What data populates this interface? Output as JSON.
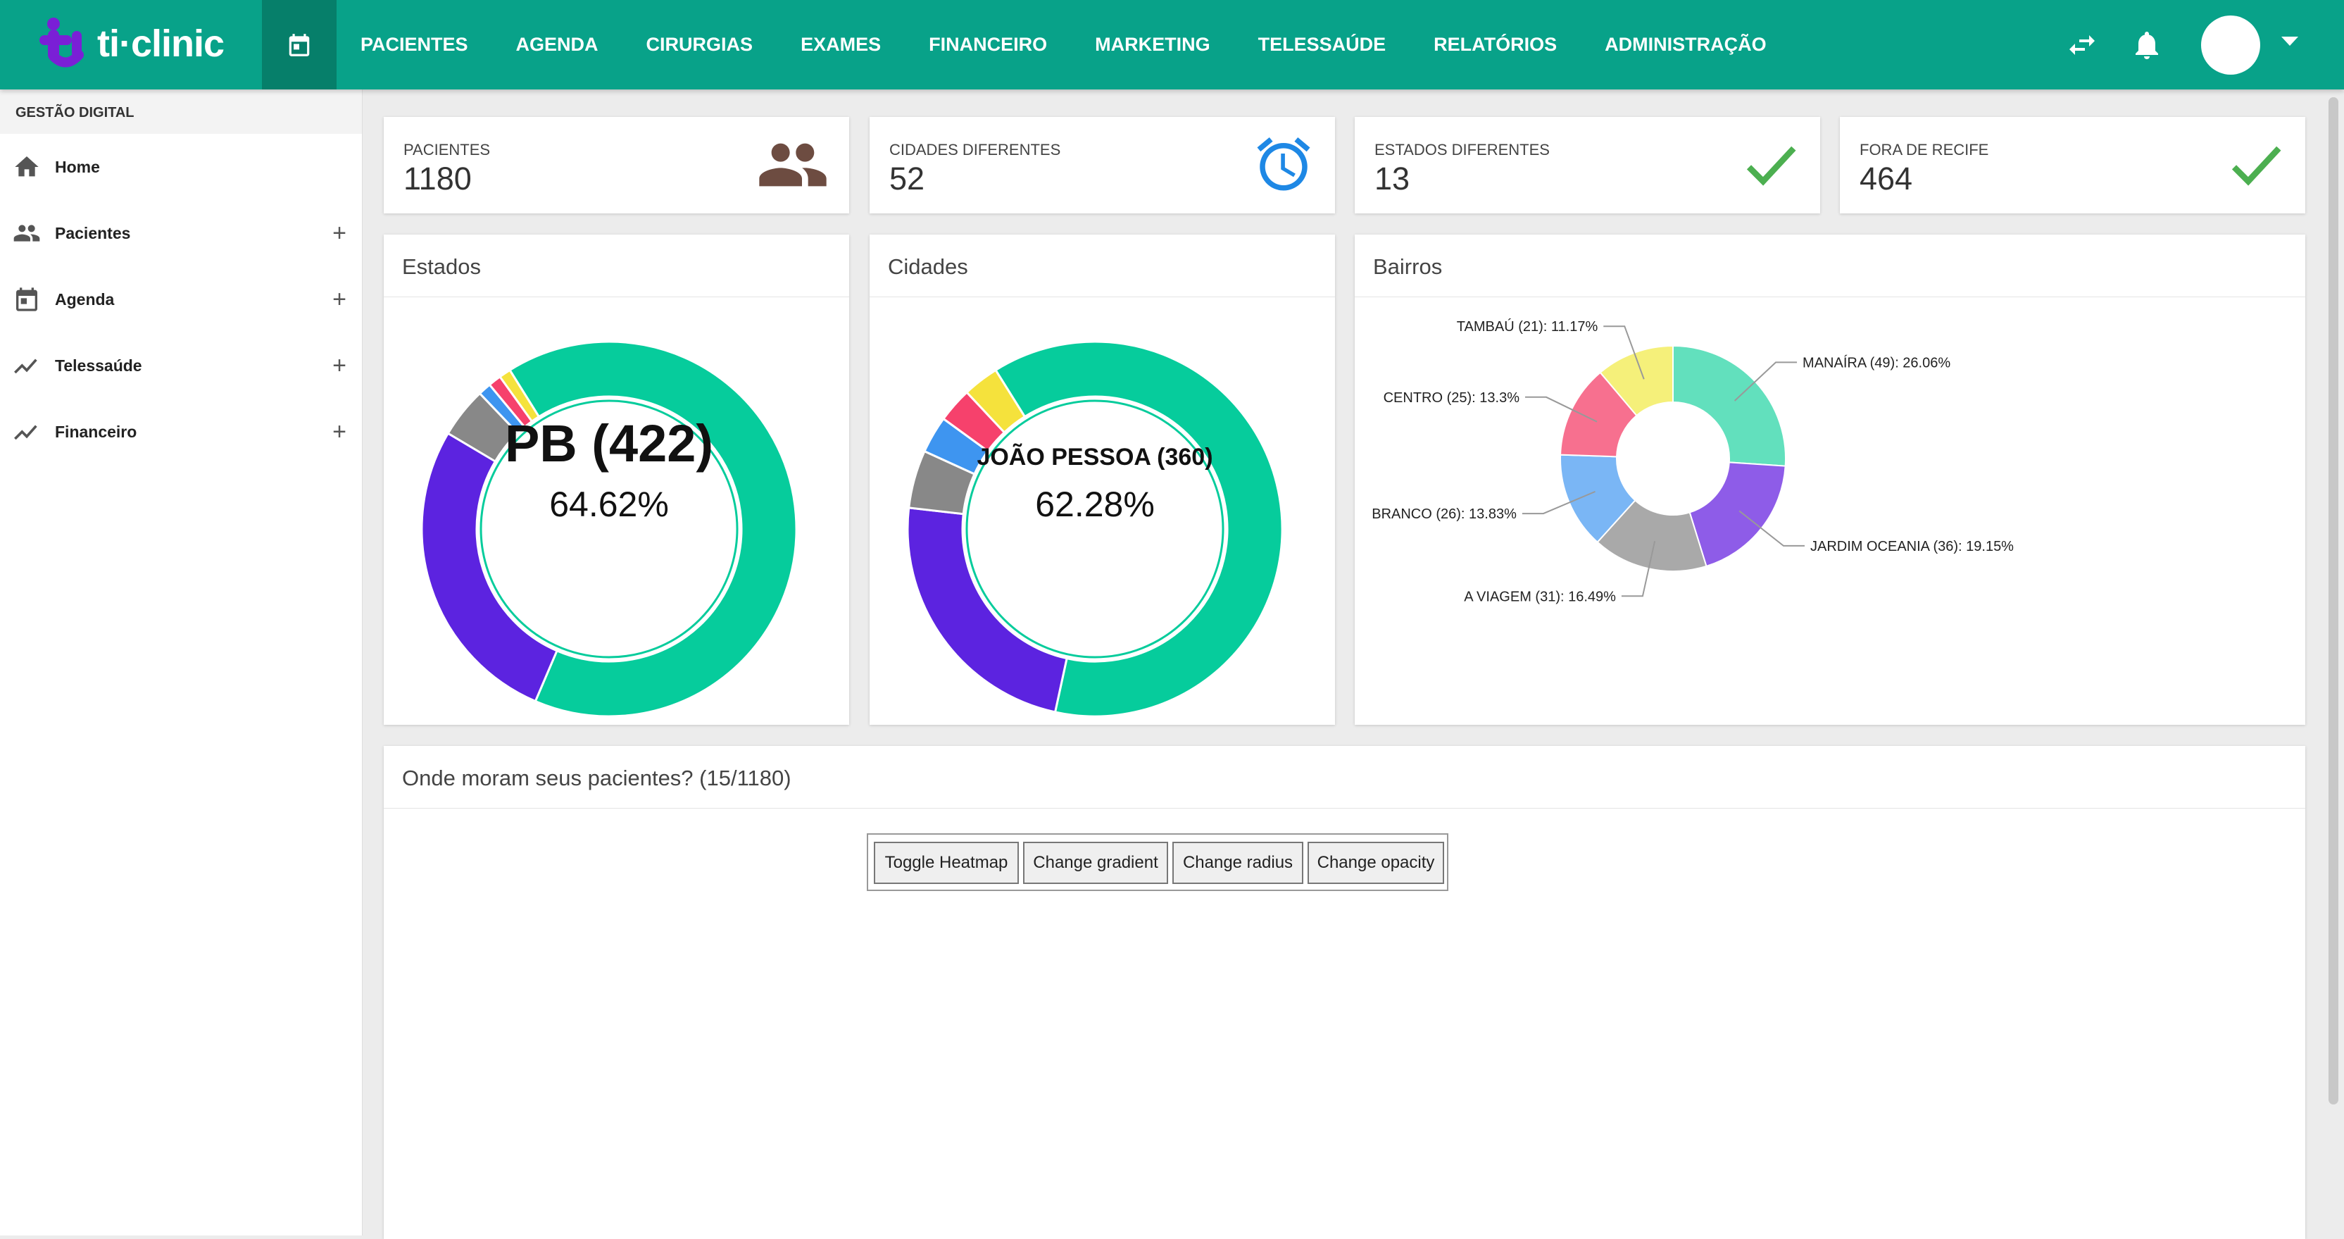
{
  "app": {
    "logo_text": "ti·clinic"
  },
  "colors": {
    "primary": "#08a289",
    "primary_dark": "#067f6a",
    "check": "#4caf50",
    "alarm": "#1e88e5",
    "people": "#6d4c41"
  },
  "nav": {
    "calendar_icon": "calendar-icon",
    "items": [
      "PACIENTES",
      "AGENDA",
      "CIRURGIAS",
      "EXAMES",
      "FINANCEIRO",
      "MARKETING",
      "TELESSAÚDE",
      "RELATÓRIOS",
      "ADMINISTRAÇÃO"
    ]
  },
  "sidebar": {
    "heading": "GESTÃO DIGITAL",
    "items": [
      {
        "label": "Home",
        "icon": "home-icon",
        "expandable": false
      },
      {
        "label": "Pacientes",
        "icon": "people-icon",
        "expandable": true
      },
      {
        "label": "Agenda",
        "icon": "calendar-icon",
        "expandable": true
      },
      {
        "label": "Telessaúde",
        "icon": "trend-icon",
        "expandable": true
      },
      {
        "label": "Financeiro",
        "icon": "trend-icon",
        "expandable": true
      }
    ],
    "plus": "+"
  },
  "stats": [
    {
      "label": "PACIENTES",
      "value": "1180",
      "icon": "people-icon"
    },
    {
      "label": "CIDADES DIFERENTES",
      "value": "52",
      "icon": "alarm-clock-icon"
    },
    {
      "label": "ESTADOS DIFERENTES",
      "value": "13",
      "icon": "check-icon"
    },
    {
      "label": "FORA DE RECIFE",
      "value": "464",
      "icon": "check-icon"
    }
  ],
  "cards": {
    "estados_title": "Estados",
    "cidades_title": "Cidades",
    "bairros_title": "Bairros",
    "map_title": "Onde moram seus pacientes? (15/1180)"
  },
  "map_controls": [
    "Toggle Heatmap",
    "Change gradient",
    "Change radius",
    "Change opacity"
  ],
  "chart_data": [
    {
      "type": "pie",
      "title": "Estados",
      "center_label": "PB (422)",
      "center_value": "64.62%",
      "slices": [
        {
          "name": "PB",
          "value": 64.62,
          "color": "#06cc9c"
        },
        {
          "name": "",
          "value": 26.8,
          "color": "#5c23e0"
        },
        {
          "name": "",
          "value": 4.3,
          "color": "#888888"
        },
        {
          "name": "",
          "value": 1.1,
          "color": "#3e95f0"
        },
        {
          "name": "",
          "value": 1.1,
          "color": "#f6416c"
        },
        {
          "name": "",
          "value": 1.0,
          "color": "#f5e23c"
        }
      ]
    },
    {
      "type": "pie",
      "title": "Cidades",
      "center_label": "JOÃO PESSOA (360)",
      "center_value": "62.28%",
      "slices": [
        {
          "name": "JOÃO PESSOA",
          "value": 62.28,
          "color": "#06cc9c"
        },
        {
          "name": "",
          "value": 23.4,
          "color": "#5c23e0"
        },
        {
          "name": "",
          "value": 5.0,
          "color": "#888888"
        },
        {
          "name": "",
          "value": 3.2,
          "color": "#3e95f0"
        },
        {
          "name": "",
          "value": 3.0,
          "color": "#f6416c"
        },
        {
          "name": "",
          "value": 3.1,
          "color": "#f5e23c"
        }
      ]
    },
    {
      "type": "pie",
      "title": "Bairros",
      "slices": [
        {
          "name": "MANAÍRA",
          "label": "MANAÍRA (49): 26.06%",
          "value": 26.06,
          "color": "#62e0bd"
        },
        {
          "name": "JARDIM OCEANIA",
          "label": "JARDIM OCEANIA (36): 19.15%",
          "value": 19.15,
          "color": "#8e5ce8"
        },
        {
          "name": "BOA VIAGEM",
          "label": "A VIAGEM (31): 16.49%",
          "value": 16.49,
          "color": "#a9a9a9"
        },
        {
          "name": "BRANCO",
          "label": "BRANCO (26): 13.83%",
          "value": 13.83,
          "color": "#7ab6f5"
        },
        {
          "name": "CENTRO",
          "label": "CENTRO (25): 13.3%",
          "value": 13.3,
          "color": "#f7708f"
        },
        {
          "name": "TAMBAÚ",
          "label": "TAMBAÚ (21): 11.17%",
          "value": 11.17,
          "color": "#f5f07a"
        }
      ]
    }
  ]
}
